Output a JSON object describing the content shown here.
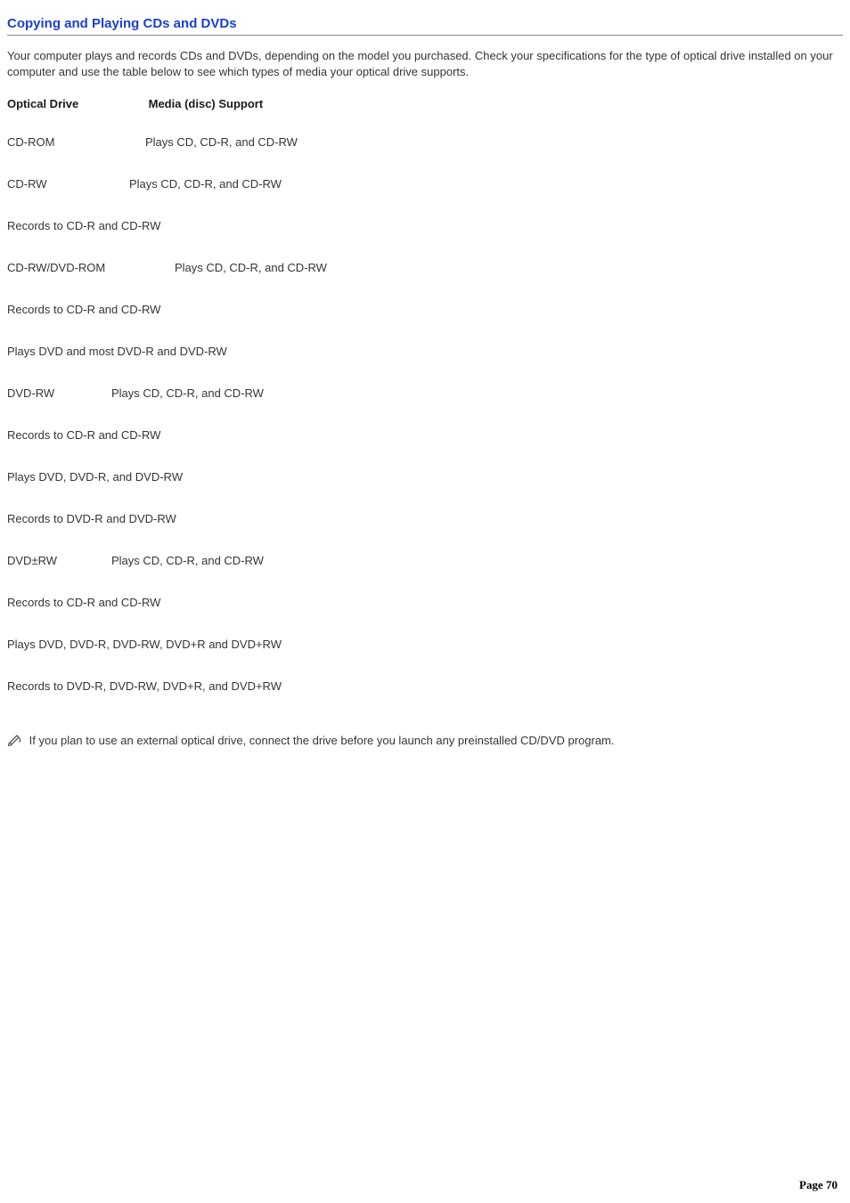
{
  "title": "Copying and Playing CDs and DVDs",
  "title_color": "#1a3fd1",
  "intro": "Your computer plays and records CDs and DVDs, depending on the model you purchased. Check your specifications for the type of optical drive installed on your computer and use the table below to see which types of media your optical drive supports.",
  "headers": {
    "col1": "Optical Drive",
    "col2": "Media (disc) Support"
  },
  "lines": [
    {
      "label": "CD-ROM",
      "label_width": 155,
      "text": "Plays CD, CD-R, and CD-RW"
    },
    {
      "label": "CD-RW",
      "label_width": 137,
      "text": "Plays CD, CD-R, and CD-RW"
    },
    {
      "label": "",
      "label_width": 0,
      "text": "Records to CD-R and CD-RW"
    },
    {
      "label": "CD-RW/DVD-ROM",
      "label_width": 188,
      "text": "Plays CD, CD-R, and CD-RW"
    },
    {
      "label": "",
      "label_width": 0,
      "text": "Records to CD-R and CD-RW"
    },
    {
      "label": "",
      "label_width": 0,
      "text": "Plays DVD and most DVD-R and DVD-RW"
    },
    {
      "label": "DVD-RW",
      "label_width": 117,
      "text": "Plays CD, CD-R, and CD-RW"
    },
    {
      "label": "",
      "label_width": 0,
      "text": "Records to CD-R and CD-RW"
    },
    {
      "label": "",
      "label_width": 0,
      "text": "Plays DVD, DVD-R, and DVD-RW"
    },
    {
      "label": "",
      "label_width": 0,
      "text": "Records to DVD-R and DVD-RW"
    },
    {
      "label": "DVD±RW",
      "label_width": 117,
      "text": "Plays CD, CD-R, and CD-RW"
    },
    {
      "label": "",
      "label_width": 0,
      "text": "Records to CD-R and CD-RW"
    },
    {
      "label": "",
      "label_width": 0,
      "text": "Plays DVD, DVD-R, DVD-RW, DVD+R and DVD+RW"
    },
    {
      "label": "",
      "label_width": 0,
      "text": "Records to DVD-R, DVD-RW, DVD+R, and DVD+RW"
    }
  ],
  "note_text": "If you plan to use an external optical drive, connect the drive before you launch any preinstalled CD/DVD program.",
  "page_label": "Page",
  "page_number": "70",
  "text_color": "#353535",
  "background_color": "#ffffff",
  "rule_color": "#8a8a8a",
  "icon_stroke": "#5a5a5a"
}
